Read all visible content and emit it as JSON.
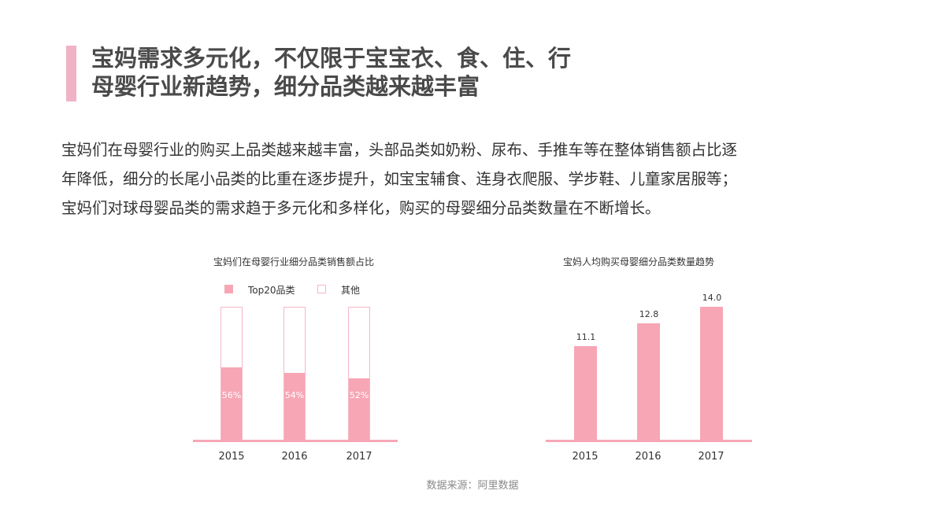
{
  "header": {
    "title_line1": "宝妈需求多元化，不仅限于宝宝衣、食、住、行",
    "title_line2": "母婴行业新趋势，细分品类越来越丰富",
    "accent_color": "#f0b3c6"
  },
  "body": {
    "lines": [
      "宝妈们在母婴行业的购买上品类越来越丰富，头部品类如奶粉、尿布、手推车等在整体销售额占比逐",
      "年降低，细分的长尾小品类的比重在逐步提升，如宝宝辅食、连身衣爬服、学步鞋、儿童家居服等；",
      "宝妈们对球母婴品类的需求趋于多元化和多样化，购买的母婴细分品类数量在不断增长。"
    ]
  },
  "chart_data": [
    {
      "type": "bar",
      "stacked": true,
      "title": "宝妈们在母婴行业细分品类销售额占比",
      "categories": [
        "2015",
        "2016",
        "2017"
      ],
      "series": [
        {
          "name": "Top20品类",
          "values": [
            56,
            54,
            52
          ],
          "labels": [
            "56%",
            "54%",
            "52%"
          ],
          "color": "#f7a6b5"
        },
        {
          "name": "其他",
          "values": [
            44,
            46,
            48
          ],
          "color": "#ffffff"
        }
      ],
      "xlabel": "",
      "ylabel": "",
      "ylim": [
        0,
        100
      ],
      "grid": false,
      "legend_position": "top"
    },
    {
      "type": "bar",
      "title": "宝妈人均购买母婴细分品类数量趋势",
      "categories": [
        "2015",
        "2016",
        "2017"
      ],
      "values": [
        11.1,
        12.8,
        14.0
      ],
      "labels": [
        "11.1",
        "12.8",
        "14.0"
      ],
      "color": "#f7a6b5",
      "xlabel": "",
      "ylabel": "",
      "grid": false
    }
  ],
  "footer": {
    "source": "数据来源：阿里数据"
  }
}
